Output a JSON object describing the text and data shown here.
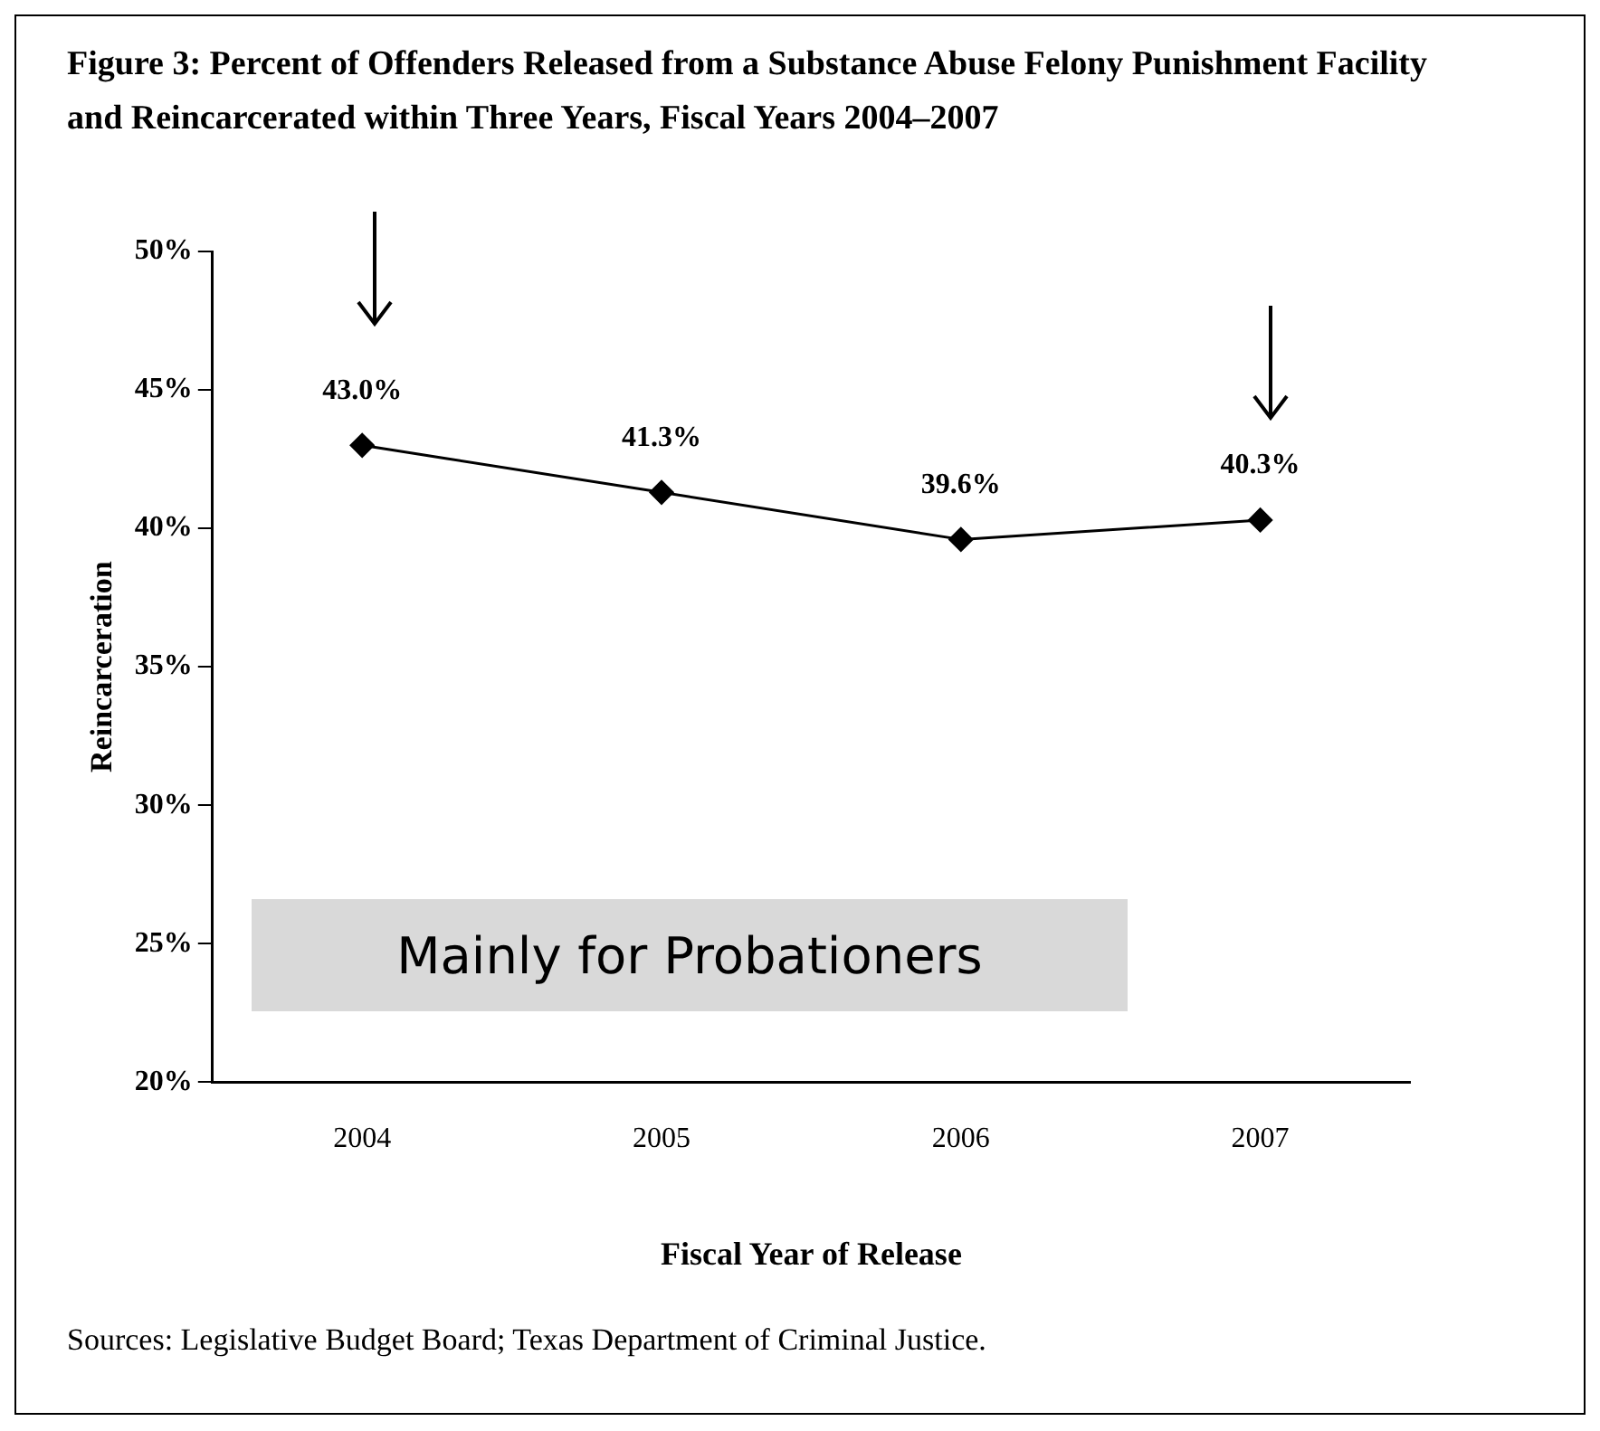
{
  "chart_data": {
    "type": "line",
    "title": "Figure 3: Percent of Offenders Released from a Substance Abuse Felony Punishment Facility and Reincarcerated within Three Years, Fiscal Years 2004–2007",
    "xlabel": "Fiscal Year of Release",
    "ylabel": "Reincarceration",
    "categories": [
      "2004",
      "2005",
      "2006",
      "2007"
    ],
    "series": [
      {
        "color": "#000000",
        "values": [
          43.0,
          41.3,
          39.6,
          40.3
        ],
        "value_labels": [
          "43.0%",
          "41.3%",
          "39.6%",
          "40.3%"
        ]
      }
    ],
    "ylim": [
      20,
      50
    ],
    "yticks": [
      {
        "value": 20,
        "label": "20%"
      },
      {
        "value": 25,
        "label": "25%"
      },
      {
        "value": 30,
        "label": "30%"
      },
      {
        "value": 35,
        "label": "35%"
      },
      {
        "value": 40,
        "label": "40%"
      },
      {
        "value": 45,
        "label": "45%"
      },
      {
        "value": 50,
        "label": "50%"
      }
    ],
    "grid": false,
    "legend": false,
    "marker": "diamond",
    "line_style": "solid",
    "annotations": [
      "Mainly for Probationers",
      "Sources: Legislative Budget Board; Texas Department of Criminal Justice."
    ]
  }
}
